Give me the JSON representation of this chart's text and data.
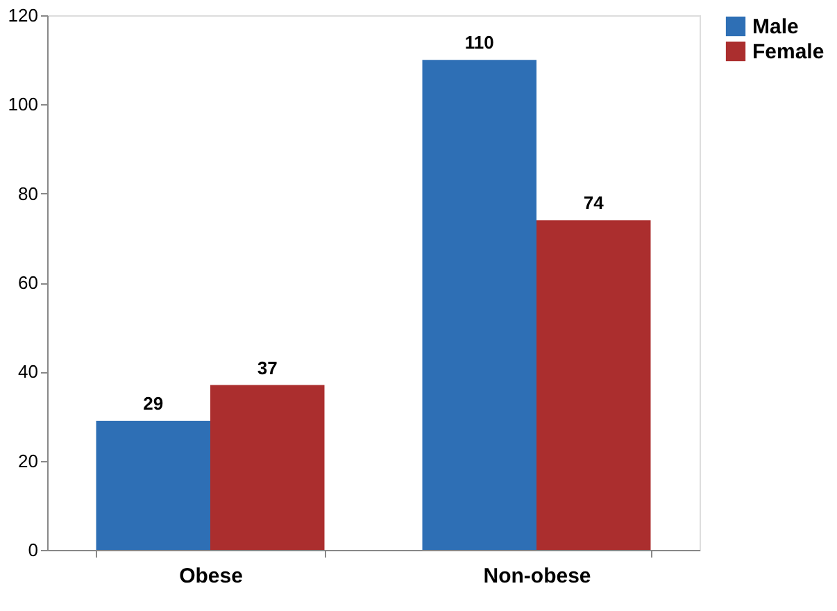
{
  "chart_data": {
    "type": "bar",
    "categories": [
      "Obese",
      "Non-obese"
    ],
    "series": [
      {
        "name": "Male",
        "color": "#2e6fb5",
        "values": [
          29,
          110
        ]
      },
      {
        "name": "Female",
        "color": "#ab2e2e",
        "values": [
          37,
          74
        ]
      }
    ],
    "ylim": [
      0,
      120
    ],
    "yticks": [
      0,
      20,
      40,
      60,
      80,
      100,
      120
    ],
    "grid": false,
    "legend": "right",
    "data_labels": true
  }
}
